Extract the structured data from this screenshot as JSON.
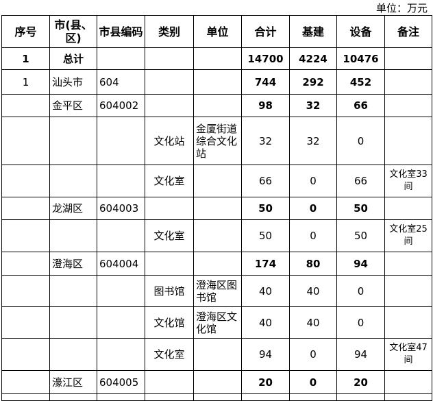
{
  "unit_label": "单位：万元",
  "headers": [
    "序号",
    "市(县、区)",
    "市县编码",
    "类别",
    "单位",
    "合计",
    "基建",
    "设备",
    "备注"
  ],
  "rows": [
    {
      "seq": "1",
      "region": "总计",
      "code": "",
      "category": "",
      "unit": "",
      "total": "14700",
      "construction": "4224",
      "equipment": "10476",
      "note": ""
    },
    {
      "seq": "1",
      "region": "汕头市",
      "code": "604",
      "category": "",
      "unit": "",
      "total": "744",
      "construction": "292",
      "equipment": "452",
      "note": ""
    },
    {
      "seq": "",
      "region": "金平区",
      "code": "604002",
      "category": "",
      "unit": "",
      "total": "98",
      "construction": "32",
      "equipment": "66",
      "note": ""
    },
    {
      "seq": "",
      "region": "",
      "code": "",
      "category": "文化站",
      "unit": "金厦街道综合文化站",
      "total": "32",
      "construction": "32",
      "equipment": "0",
      "note": ""
    },
    {
      "seq": "",
      "region": "",
      "code": "",
      "category": "文化室",
      "unit": "",
      "total": "66",
      "construction": "0",
      "equipment": "66",
      "note": "文化室33间"
    },
    {
      "seq": "",
      "region": "龙湖区",
      "code": "604003",
      "category": "",
      "unit": "",
      "total": "50",
      "construction": "0",
      "equipment": "50",
      "note": ""
    },
    {
      "seq": "",
      "region": "",
      "code": "",
      "category": "文化室",
      "unit": "",
      "total": "50",
      "construction": "0",
      "equipment": "50",
      "note": "文化室25间"
    },
    {
      "seq": "",
      "region": "澄海区",
      "code": "604004",
      "category": "",
      "unit": "",
      "total": "174",
      "construction": "80",
      "equipment": "94",
      "note": ""
    },
    {
      "seq": "",
      "region": "",
      "code": "",
      "category": "图书馆",
      "unit": "澄海区图书馆",
      "total": "40",
      "construction": "40",
      "equipment": "0",
      "note": ""
    },
    {
      "seq": "",
      "region": "",
      "code": "",
      "category": "文化馆",
      "unit": "澄海区文化馆",
      "total": "40",
      "construction": "40",
      "equipment": "0",
      "note": ""
    },
    {
      "seq": "",
      "region": "",
      "code": "",
      "category": "文化室",
      "unit": "",
      "total": "94",
      "construction": "0",
      "equipment": "94",
      "note": "文化室47间"
    },
    {
      "seq": "",
      "region": "濠江区",
      "code": "604005",
      "category": "",
      "unit": "",
      "total": "20",
      "construction": "0",
      "equipment": "20",
      "note": ""
    }
  ]
}
